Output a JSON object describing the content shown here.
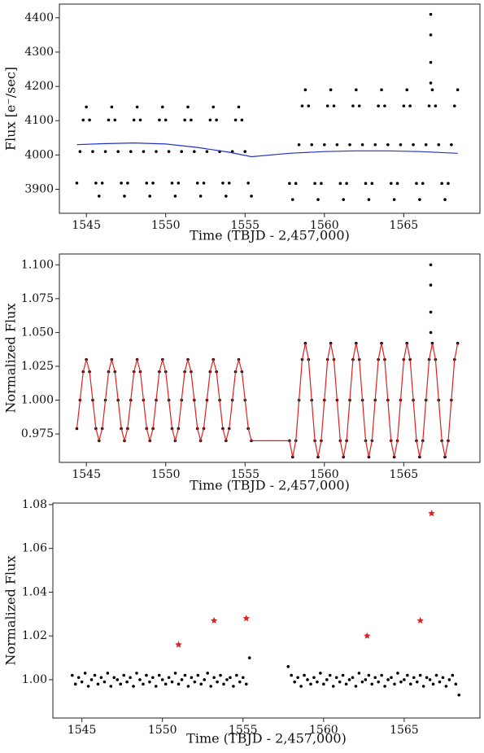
{
  "chart_data": [
    {
      "type": "scatter",
      "x_label": "Time (TBJD - 2,457,000)",
      "y_label": "Flux [e⁻/sec]",
      "xlim": [
        1543.3,
        1569.8
      ],
      "ylim": [
        3830,
        4440
      ],
      "xticks": [
        1545,
        1550,
        1555,
        1560,
        1565
      ],
      "yticks": [
        3900,
        4000,
        4100,
        4200,
        4300,
        4400
      ],
      "x": [
        1544.4,
        1544.6,
        1544.8,
        1545,
        1545.2,
        1545.4,
        1545.6,
        1545.8,
        1546,
        1546.2,
        1546.4,
        1546.6,
        1546.8,
        1547,
        1547.2,
        1547.4,
        1547.6,
        1547.8,
        1548,
        1548.2,
        1548.4,
        1548.6,
        1548.8,
        1549,
        1549.2,
        1549.4,
        1549.6,
        1549.8,
        1550,
        1550.2,
        1550.4,
        1550.6,
        1550.8,
        1551,
        1551.2,
        1551.4,
        1551.6,
        1551.8,
        1552,
        1552.2,
        1552.4,
        1552.6,
        1552.8,
        1553,
        1553.2,
        1553.4,
        1553.6,
        1553.8,
        1554,
        1554.2,
        1554.4,
        1554.6,
        1554.8,
        1555,
        1555.2,
        1555.4,
        1557.8,
        1558,
        1558.2,
        1558.4,
        1558.6,
        1558.8,
        1559,
        1559.2,
        1559.4,
        1559.6,
        1559.8,
        1560,
        1560.2,
        1560.4,
        1560.6,
        1560.8,
        1561,
        1561.2,
        1561.4,
        1561.6,
        1561.8,
        1562,
        1562.2,
        1562.4,
        1562.6,
        1562.8,
        1563,
        1563.2,
        1563.4,
        1563.6,
        1563.8,
        1564,
        1564.2,
        1564.4,
        1564.6,
        1564.8,
        1565,
        1565.2,
        1565.4,
        1565.6,
        1565.8,
        1566,
        1566.2,
        1566.4,
        1566.6,
        1566.8,
        1567,
        1567.2,
        1567.4,
        1567.6,
        1567.8,
        1568,
        1568.2,
        1568.4
      ],
      "series": [
        {
          "color": "#000000",
          "mode": "markers",
          "values": [
            3918,
            4010,
            4102,
            4140,
            4102,
            4010,
            3918,
            3880,
            3918,
            4010,
            4102,
            4140,
            4102,
            4010,
            3918,
            3880,
            3918,
            4010,
            4102,
            4140,
            4102,
            4010,
            3918,
            3880,
            3918,
            4010,
            4102,
            4140,
            4102,
            4010,
            3918,
            3880,
            3918,
            4010,
            4102,
            4140,
            4102,
            4010,
            3918,
            3880,
            3918,
            4010,
            4102,
            4140,
            4102,
            4010,
            3918,
            3880,
            3918,
            4010,
            4102,
            4140,
            4102,
            4010,
            3918,
            3880,
            3917,
            3870,
            3917,
            4030,
            4143,
            4190,
            4143,
            4030,
            3917,
            3870,
            3917,
            4030,
            4143,
            4190,
            4143,
            4030,
            3917,
            3870,
            3917,
            4030,
            4143,
            4190,
            4143,
            4030,
            3917,
            3870,
            3917,
            4030,
            4143,
            4190,
            4143,
            4030,
            3917,
            3870,
            3917,
            4030,
            4143,
            4190,
            4143,
            4030,
            3917,
            3870,
            3917,
            4030,
            4143,
            4190,
            4143,
            4030,
            3917,
            3870,
            3917,
            4030,
            4143,
            4190
          ]
        },
        {
          "color": "#000000",
          "mode": "markers",
          "x": [
            1566.7,
            1566.7,
            1566.7,
            1566.7
          ],
          "values": [
            4410,
            4350,
            4270,
            4210
          ]
        },
        {
          "color": "#2233cc",
          "mode": "line",
          "x": [
            1544.4,
            1546,
            1548,
            1550,
            1552,
            1554,
            1555.4,
            1557.8,
            1560,
            1562,
            1564,
            1566,
            1568.4
          ],
          "values": [
            4030,
            4033,
            4035,
            4032,
            4022,
            4008,
            3995,
            4005,
            4010,
            4012,
            4012,
            4010,
            4005
          ]
        }
      ]
    },
    {
      "type": "scatter",
      "x_label": "Time (TBJD - 2,457,000)",
      "y_label": "Normalized Flux",
      "xlim": [
        1543.3,
        1569.8
      ],
      "ylim": [
        0.954,
        1.108
      ],
      "xticks": [
        1545,
        1550,
        1555,
        1560,
        1565
      ],
      "yticks": [
        0.975,
        {
          "value": 1,
          "label": "1.000"
        },
        1.025,
        {
          "value": 1.05,
          "label": "1.050"
        },
        1.075,
        {
          "value": 1.1,
          "label": "1.100"
        }
      ],
      "x": [
        1544.4,
        1544.6,
        1544.8,
        1545,
        1545.2,
        1545.4,
        1545.6,
        1545.8,
        1546,
        1546.2,
        1546.4,
        1546.6,
        1546.8,
        1547,
        1547.2,
        1547.4,
        1547.6,
        1547.8,
        1548,
        1548.2,
        1548.4,
        1548.6,
        1548.8,
        1549,
        1549.2,
        1549.4,
        1549.6,
        1549.8,
        1550,
        1550.2,
        1550.4,
        1550.6,
        1550.8,
        1551,
        1551.2,
        1551.4,
        1551.6,
        1551.8,
        1552,
        1552.2,
        1552.4,
        1552.6,
        1552.8,
        1553,
        1553.2,
        1553.4,
        1553.6,
        1553.8,
        1554,
        1554.2,
        1554.4,
        1554.6,
        1554.8,
        1555,
        1555.2,
        1555.4,
        1557.8,
        1558,
        1558.2,
        1558.4,
        1558.6,
        1558.8,
        1559,
        1559.2,
        1559.4,
        1559.6,
        1559.8,
        1560,
        1560.2,
        1560.4,
        1560.6,
        1560.8,
        1561,
        1561.2,
        1561.4,
        1561.6,
        1561.8,
        1562,
        1562.2,
        1562.4,
        1562.6,
        1562.8,
        1563,
        1563.2,
        1563.4,
        1563.6,
        1563.8,
        1564,
        1564.2,
        1564.4,
        1564.6,
        1564.8,
        1565,
        1565.2,
        1565.4,
        1565.6,
        1565.8,
        1566,
        1566.2,
        1566.4,
        1566.6,
        1566.8,
        1567,
        1567.2,
        1567.4,
        1567.6,
        1567.8,
        1568,
        1568.2,
        1568.4
      ],
      "series": [
        {
          "color": "#000000",
          "mode": "markers",
          "values": [
            0.979,
            1.0,
            1.021,
            1.03,
            1.021,
            1.0,
            0.979,
            0.97,
            0.979,
            1.0,
            1.021,
            1.03,
            1.021,
            1.0,
            0.979,
            0.97,
            0.979,
            1.0,
            1.021,
            1.03,
            1.021,
            1.0,
            0.979,
            0.97,
            0.979,
            1.0,
            1.021,
            1.03,
            1.021,
            1.0,
            0.979,
            0.97,
            0.979,
            1.0,
            1.021,
            1.03,
            1.021,
            1.0,
            0.979,
            0.97,
            0.979,
            1.0,
            1.021,
            1.03,
            1.021,
            1.0,
            0.979,
            0.97,
            0.979,
            1.0,
            1.021,
            1.03,
            1.021,
            1.0,
            0.979,
            0.97,
            0.97,
            0.958,
            0.97,
            1.0,
            1.03,
            1.042,
            1.03,
            1.0,
            0.97,
            0.958,
            0.97,
            1.0,
            1.03,
            1.042,
            1.03,
            1.0,
            0.97,
            0.958,
            0.97,
            1.0,
            1.03,
            1.042,
            1.03,
            1.0,
            0.97,
            0.958,
            0.97,
            1.0,
            1.03,
            1.042,
            1.03,
            1.0,
            0.97,
            0.958,
            0.97,
            1.0,
            1.03,
            1.042,
            1.03,
            1.0,
            0.97,
            0.958,
            0.97,
            1.0,
            1.03,
            1.042,
            1.03,
            1.0,
            0.97,
            0.958,
            0.97,
            1.0,
            1.03,
            1.042
          ]
        },
        {
          "color": "#000000",
          "mode": "markers",
          "x": [
            1566.7,
            1566.7,
            1566.7,
            1566.7
          ],
          "values": [
            1.1,
            1.085,
            1.065,
            1.05
          ]
        },
        {
          "color": "#dd2222",
          "mode": "line",
          "values": [
            0.979,
            1.0,
            1.021,
            1.03,
            1.021,
            1.0,
            0.979,
            0.97,
            0.979,
            1.0,
            1.021,
            1.03,
            1.021,
            1.0,
            0.979,
            0.97,
            0.979,
            1.0,
            1.021,
            1.03,
            1.021,
            1.0,
            0.979,
            0.97,
            0.979,
            1.0,
            1.021,
            1.03,
            1.021,
            1.0,
            0.979,
            0.97,
            0.979,
            1.0,
            1.021,
            1.03,
            1.021,
            1.0,
            0.979,
            0.97,
            0.979,
            1.0,
            1.021,
            1.03,
            1.021,
            1.0,
            0.979,
            0.97,
            0.979,
            1.0,
            1.021,
            1.03,
            1.021,
            1.0,
            0.979,
            0.97,
            0.97,
            0.958,
            0.97,
            1.0,
            1.03,
            1.042,
            1.03,
            1.0,
            0.97,
            0.958,
            0.97,
            1.0,
            1.03,
            1.042,
            1.03,
            1.0,
            0.97,
            0.958,
            0.97,
            1.0,
            1.03,
            1.042,
            1.03,
            1.0,
            0.97,
            0.958,
            0.97,
            1.0,
            1.03,
            1.042,
            1.03,
            1.0,
            0.97,
            0.958,
            0.97,
            1.0,
            1.03,
            1.042,
            1.03,
            1.0,
            0.97,
            0.958,
            0.97,
            1.0,
            1.03,
            1.042,
            1.03,
            1.0,
            0.97,
            0.958,
            0.97,
            1.0,
            1.03,
            1.042
          ]
        }
      ]
    },
    {
      "type": "scatter",
      "x_label": "Time (TBJD - 2,457,000)",
      "y_label": "Normalized Flux",
      "xlim": [
        1543.2,
        1569.7
      ],
      "ylim": [
        0.9825,
        1.0807
      ],
      "xticks": [
        1545,
        1550,
        1555,
        1560,
        1565
      ],
      "yticks": [
        {
          "value": 1,
          "label": "1.00"
        },
        1.02,
        1.04,
        1.06,
        1.08
      ],
      "x": [
        1544.4,
        1544.6,
        1544.8,
        1545,
        1545.2,
        1545.4,
        1545.6,
        1545.8,
        1546,
        1546.2,
        1546.4,
        1546.6,
        1546.8,
        1547,
        1547.2,
        1547.4,
        1547.6,
        1547.8,
        1548,
        1548.2,
        1548.4,
        1548.6,
        1548.8,
        1549,
        1549.2,
        1549.4,
        1549.6,
        1549.8,
        1550,
        1550.2,
        1550.4,
        1550.6,
        1550.8,
        1551,
        1551.2,
        1551.4,
        1551.6,
        1551.8,
        1552,
        1552.2,
        1552.4,
        1552.6,
        1552.8,
        1553,
        1553.2,
        1553.4,
        1553.6,
        1553.8,
        1554,
        1554.2,
        1554.4,
        1554.6,
        1554.8,
        1555,
        1555.2,
        1555.4,
        1557.8,
        1558,
        1558.2,
        1558.4,
        1558.6,
        1558.8,
        1559,
        1559.2,
        1559.4,
        1559.6,
        1559.8,
        1560,
        1560.2,
        1560.4,
        1560.6,
        1560.8,
        1561,
        1561.2,
        1561.4,
        1561.6,
        1561.8,
        1562,
        1562.2,
        1562.4,
        1562.6,
        1562.8,
        1563,
        1563.2,
        1563.4,
        1563.6,
        1563.8,
        1564,
        1564.2,
        1564.4,
        1564.6,
        1564.8,
        1565,
        1565.2,
        1565.4,
        1565.6,
        1565.8,
        1566,
        1566.2,
        1566.4,
        1566.6,
        1566.8,
        1567,
        1567.2,
        1567.4,
        1567.6,
        1567.8,
        1568,
        1568.2,
        1568.4
      ],
      "series": [
        {
          "color": "#000000",
          "mode": "markers",
          "values": [
            1.002,
            0.998,
            1.001,
            0.999,
            1.003,
            0.997,
            1.0,
            1.002,
            0.998,
            1.001,
            0.999,
            1.003,
            0.997,
            1.001,
            1.0,
            0.998,
            1.002,
            0.999,
            1.001,
            0.997,
            1.003,
            1.0,
            0.998,
            1.002,
            0.999,
            1.001,
            0.997,
            1.002,
            1.0,
            0.998,
            1.001,
            0.999,
            1.003,
            0.998,
            1.0,
            1.002,
            0.997,
            1.001,
            0.999,
            1.002,
            0.998,
            1.0,
            1.003,
            0.997,
            1.001,
            0.999,
            1.002,
            0.998,
            1.0,
            1.001,
            0.997,
            1.002,
            0.999,
            1.001,
            0.998,
            1.01,
            1.006,
            1.002,
            0.999,
            1.001,
            0.997,
            1.002,
            1.0,
            0.998,
            1.001,
            0.999,
            1.003,
            0.998,
            1.0,
            1.002,
            0.997,
            1.001,
            0.999,
            1.002,
            0.998,
            1.0,
            1.001,
            0.997,
            1.003,
            0.999,
            1.0,
            1.002,
            0.998,
            1.001,
            0.999,
            1.002,
            0.997,
            1.0,
            1.001,
            0.998,
            1.003,
            0.999,
            1.0,
            1.002,
            0.998,
            1.001,
            0.999,
            1.002,
            0.997,
            1.001,
            1.0,
            0.998,
            1.002,
            0.999,
            1.001,
            0.997,
            1.0,
            1.002,
            0.998,
            0.993
          ]
        },
        {
          "color": "#dd2222",
          "mode": "markers",
          "marker": "star",
          "x": [
            1551.0,
            1553.2,
            1555.2,
            1562.7,
            1566.0,
            1566.7
          ],
          "values": [
            1.016,
            1.027,
            1.028,
            1.02,
            1.027,
            1.076
          ]
        }
      ]
    }
  ]
}
